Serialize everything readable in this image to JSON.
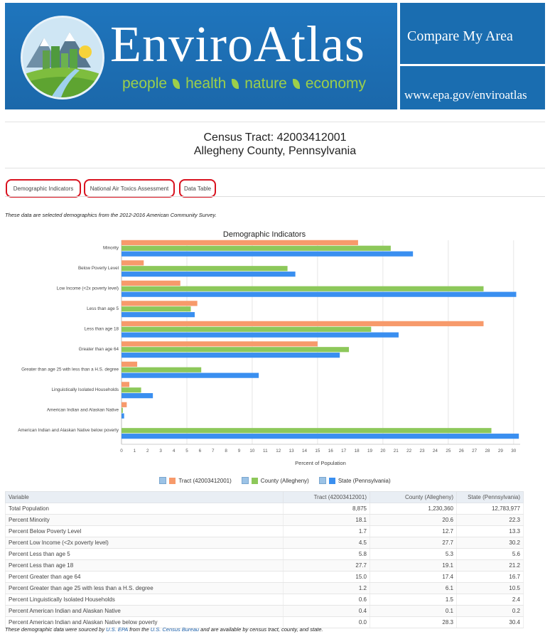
{
  "banner": {
    "brand": "EnviroAtlas",
    "tagline": [
      "people",
      "health",
      "nature",
      "economy"
    ],
    "compare": "Compare My Area",
    "url": "www.epa.gov/enviroatlas",
    "colors": {
      "bg": "#1f6fb3",
      "green": "#9ccf4a"
    }
  },
  "header": {
    "line1": "Census Tract: 42003412001",
    "line2": "Allegheny County, Pennsylvania"
  },
  "tabs": [
    {
      "label": "Demographic Indicators"
    },
    {
      "label": "National Air Toxics Assessment"
    },
    {
      "label": "Data Table"
    }
  ],
  "intro": "These data are selected demographics from the 2012-2016 American Community Survey.",
  "chart_data": {
    "type": "bar",
    "orientation": "horizontal",
    "title": "Demographic Indicators",
    "xlabel": "Percent of Population",
    "xlim": [
      0,
      30.5
    ],
    "xticks": [
      "0",
      "1",
      "2",
      "3",
      "4",
      "5",
      "6",
      "7",
      "8",
      "9",
      "10",
      "11",
      "12",
      "13",
      "14",
      "15",
      "16",
      "17",
      "18",
      "19",
      "20",
      "21",
      "22",
      "23",
      "24",
      "25",
      "26",
      "27",
      "28",
      "29",
      "30"
    ],
    "categories": [
      "Minority",
      "Below Poverty Level",
      "Low Income (<2x poverty level)",
      "Less than age 5",
      "Less than age 18",
      "Greater than age 64",
      "Greater than age 25 with less than a H.S. degree",
      "Linguistically Isolated Households",
      "American Indian and Alaskan Native",
      "American Indian and Alaskan Native below poverty"
    ],
    "series": [
      {
        "name": "Tract (42003412001)",
        "color": "#f79a6b",
        "values": [
          18.1,
          1.7,
          4.5,
          5.8,
          27.7,
          15.0,
          1.2,
          0.6,
          0.4,
          0.0
        ]
      },
      {
        "name": "County (Allegheny)",
        "color": "#8dc85a",
        "values": [
          20.6,
          12.7,
          27.7,
          5.3,
          19.1,
          17.4,
          6.1,
          1.5,
          0.1,
          28.3
        ]
      },
      {
        "name": "State (Pennsylvania)",
        "color": "#3a8ff0",
        "values": [
          22.3,
          13.3,
          30.2,
          5.6,
          21.2,
          16.7,
          10.5,
          2.4,
          0.2,
          30.4
        ]
      }
    ],
    "grid": true,
    "legend": "bottom-center"
  },
  "table": {
    "headers": [
      "Variable",
      "Tract (42003412001)",
      "County (Allegheny)",
      "State (Pennsylvania)"
    ],
    "rows": [
      [
        "Total Population",
        "8,875",
        "1,230,360",
        "12,783,977"
      ],
      [
        "Percent Minority",
        "18.1",
        "20.6",
        "22.3"
      ],
      [
        "Percent Below Poverty Level",
        "1.7",
        "12.7",
        "13.3"
      ],
      [
        "Percent Low Income (<2x poverty level)",
        "4.5",
        "27.7",
        "30.2"
      ],
      [
        "Percent Less than age 5",
        "5.8",
        "5.3",
        "5.6"
      ],
      [
        "Percent Less than age 18",
        "27.7",
        "19.1",
        "21.2"
      ],
      [
        "Percent Greater than age 64",
        "15.0",
        "17.4",
        "16.7"
      ],
      [
        "Percent Greater than age 25 with less than a H.S. degree",
        "1.2",
        "6.1",
        "10.5"
      ],
      [
        "Percent Linguistically Isolated Households",
        "0.6",
        "1.5",
        "2.4"
      ],
      [
        "Percent American Indian and Alaskan Native",
        "0.4",
        "0.1",
        "0.2"
      ],
      [
        "Percent American Indian and Alaskan Native below poverty",
        "0.0",
        "28.3",
        "30.4"
      ]
    ]
  },
  "footer": {
    "pre": "These demographic data were sourced by ",
    "link1": "U.S. EPA",
    "mid": " from the ",
    "link2": "U.S. Census Bureau",
    "post": " and are available by census tract, county, and state."
  }
}
